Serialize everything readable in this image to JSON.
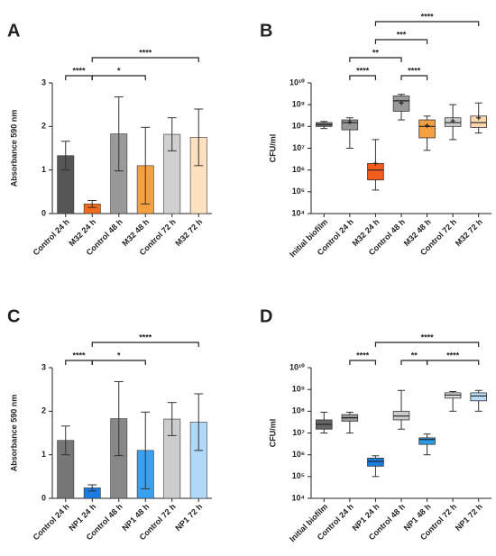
{
  "chart_data": [
    {
      "type": "bar",
      "panel": "A",
      "ylabel": "Absorbance 590 nm",
      "categories": [
        "Control 24 h",
        "M32 24 h",
        "Control 48 h",
        "M32  48 h",
        "Control 72 h",
        "M32 72 h"
      ],
      "values": [
        1.33,
        0.22,
        1.83,
        1.1,
        1.82,
        1.75
      ],
      "errors": [
        0.33,
        0.08,
        0.85,
        0.88,
        0.38,
        0.65
      ],
      "colors": [
        "#555555",
        "#f26b1d",
        "#999999",
        "#f5a040",
        "#d0d0d0",
        "#fde0c0"
      ],
      "ylim": [
        0,
        3
      ],
      "yticks": [
        0,
        1,
        2,
        3
      ],
      "brackets": [
        {
          "from": 0,
          "to": 1,
          "label": "****"
        },
        {
          "from": 1,
          "to": 3,
          "label": "*"
        },
        {
          "from": 1,
          "to": 5,
          "label": "****"
        }
      ]
    },
    {
      "type": "box",
      "panel": "B",
      "ylabel": "CFU/ml",
      "log_scale": true,
      "categories": [
        "Initial biofilm",
        "Control 24 h",
        "M32 24 h",
        "Control 48 h",
        "M32 48 h",
        "Control 72 h",
        "M32 72 h"
      ],
      "boxes": [
        {
          "min": 80000000,
          "q1": 100000000,
          "median": 120000000,
          "q3": 150000000,
          "max": 170000000
        },
        {
          "min": 10000000,
          "q1": 70000000,
          "median": 150000000,
          "q3": 200000000,
          "max": 250000000,
          "mean": 160000000
        },
        {
          "min": 120000,
          "q1": 350000,
          "median": 1000000,
          "q3": 2000000,
          "max": 25000000,
          "mean": 2000000
        },
        {
          "min": 200000000,
          "q1": 500000000,
          "median": 1500000000,
          "q3": 2500000000,
          "max": 3000000000,
          "mean": 1200000000
        },
        {
          "min": 8000000,
          "q1": 30000000,
          "median": 100000000,
          "q3": 200000000,
          "max": 300000000,
          "mean": 110000000
        },
        {
          "min": 25000000,
          "q1": 100000000,
          "median": 150000000,
          "q3": 250000000,
          "max": 1000000000,
          "mean": 180000000
        },
        {
          "min": 50000000,
          "q1": 90000000,
          "median": 150000000,
          "q3": 300000000,
          "max": 1200000000,
          "mean": 250000000
        }
      ],
      "colors": [
        "#777777",
        "#999999",
        "#f25c1d",
        "#999999",
        "#f5a040",
        "#cccccc",
        "#fcd8b0"
      ],
      "ylim": [
        10000,
        10000000000
      ],
      "yticks": [
        {
          "value": 10000,
          "label": "10⁴"
        },
        {
          "value": 100000,
          "label": "10⁵"
        },
        {
          "value": 1000000,
          "label": "10⁶"
        },
        {
          "value": 10000000,
          "label": "10⁷"
        },
        {
          "value": 100000000,
          "label": "10⁸"
        },
        {
          "value": 1000000000,
          "label": "10⁹"
        },
        {
          "value": 10000000000,
          "label": "10¹⁰"
        }
      ],
      "brackets": [
        {
          "from": 1,
          "to": 2,
          "label": "****"
        },
        {
          "from": 3,
          "to": 4,
          "label": "****"
        },
        {
          "from": 1,
          "to": 3,
          "label": "**"
        },
        {
          "from": 2,
          "to": 4,
          "label": "***"
        },
        {
          "from": 2,
          "to": 6,
          "label": "****"
        }
      ]
    },
    {
      "type": "bar",
      "panel": "C",
      "ylabel": "Absorbance 590 nm",
      "categories": [
        "Control 24 h",
        "NP1 24 h",
        "Control 48 h",
        "NP1 48 h",
        "Control 72 h",
        "NP1 72 h"
      ],
      "values": [
        1.33,
        0.24,
        1.83,
        1.1,
        1.82,
        1.75
      ],
      "errors": [
        0.33,
        0.07,
        0.85,
        0.88,
        0.38,
        0.65
      ],
      "colors": [
        "#777777",
        "#1a7be0",
        "#888888",
        "#3aa0f0",
        "#cccccc",
        "#b0d8f8"
      ],
      "ylim": [
        0,
        3
      ],
      "yticks": [
        0,
        1,
        2,
        3
      ],
      "brackets": [
        {
          "from": 0,
          "to": 1,
          "label": "****"
        },
        {
          "from": 1,
          "to": 3,
          "label": "*"
        },
        {
          "from": 1,
          "to": 5,
          "label": "****"
        }
      ]
    },
    {
      "type": "box",
      "panel": "D",
      "ylabel": "CFU/ml",
      "log_scale": true,
      "categories": [
        "Initial biofilm",
        "Control 24 h",
        "NP1 24 h",
        "Control 48 h",
        "NP1 48 h",
        "Control 72 h",
        "NP1 72 h"
      ],
      "boxes": [
        {
          "min": 10000000,
          "q1": 15000000,
          "median": 25000000,
          "q3": 40000000,
          "max": 90000000
        },
        {
          "min": 10000000,
          "q1": 35000000,
          "median": 50000000,
          "q3": 70000000,
          "max": 90000000
        },
        {
          "min": 100000,
          "q1": 300000,
          "median": 500000,
          "q3": 700000,
          "max": 900000
        },
        {
          "min": 15000000,
          "q1": 40000000,
          "median": 60000000,
          "q3": 100000000,
          "max": 900000000
        },
        {
          "min": 1000000,
          "q1": 3000000,
          "median": 5000000,
          "q3": 6000000,
          "max": 9000000
        },
        {
          "min": 100000000,
          "q1": 400000000,
          "median": 550000000,
          "q3": 700000000,
          "max": 800000000
        },
        {
          "min": 100000000,
          "q1": 300000000,
          "median": 500000000,
          "q3": 700000000,
          "max": 900000000
        }
      ],
      "colors": [
        "#666666",
        "#999999",
        "#1a7be0",
        "#cccccc",
        "#2a9de8",
        "#dddddd",
        "#b8dcf5"
      ],
      "ylim": [
        10000,
        10000000000
      ],
      "yticks": [
        {
          "value": 10000,
          "label": "10⁴"
        },
        {
          "value": 100000,
          "label": "10⁵"
        },
        {
          "value": 1000000,
          "label": "10⁶"
        },
        {
          "value": 10000000,
          "label": "10⁷"
        },
        {
          "value": 100000000,
          "label": "10⁸"
        },
        {
          "value": 1000000000,
          "label": "10⁹"
        },
        {
          "value": 10000000000,
          "label": "10¹⁰"
        }
      ],
      "brackets": [
        {
          "from": 1,
          "to": 2,
          "label": "****"
        },
        {
          "from": 3,
          "to": 4,
          "label": "**"
        },
        {
          "from": 4,
          "to": 6,
          "label": "****"
        },
        {
          "from": 2,
          "to": 6,
          "label": "****"
        }
      ]
    }
  ]
}
